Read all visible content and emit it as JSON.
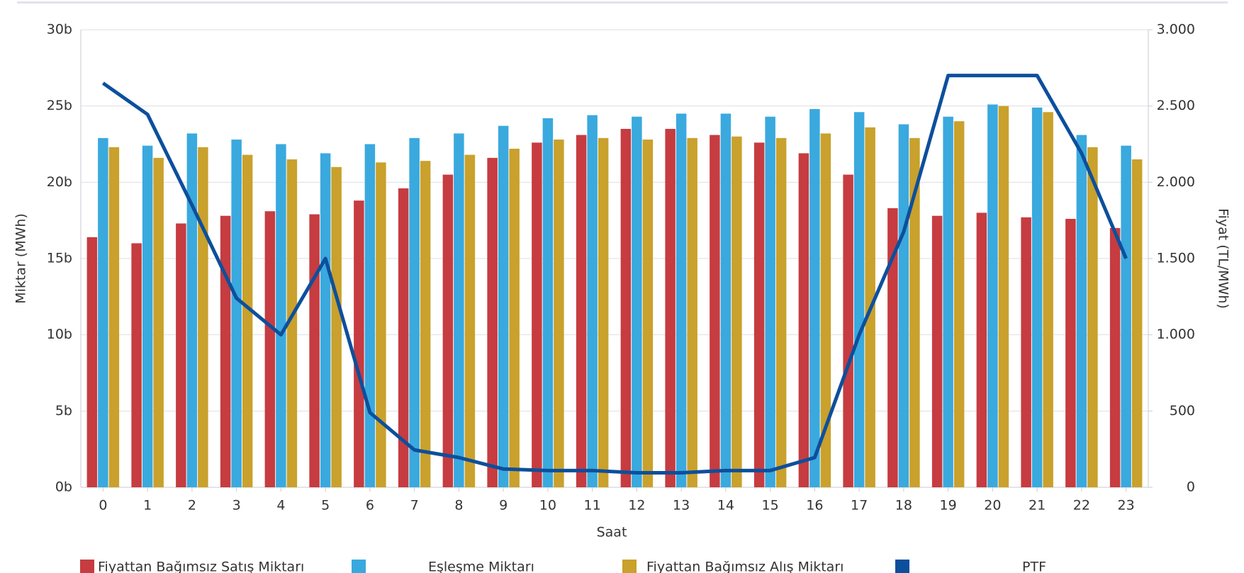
{
  "chart_data": {
    "type": "bar",
    "x_label": "Saat",
    "y_label": "Miktar (MWh)",
    "y2_label": "Fiyat (TL/MWh)",
    "categories": [
      "0",
      "1",
      "2",
      "3",
      "4",
      "5",
      "6",
      "7",
      "8",
      "9",
      "10",
      "11",
      "12",
      "13",
      "14",
      "15",
      "16",
      "17",
      "18",
      "19",
      "20",
      "21",
      "22",
      "23"
    ],
    "ylim": [
      0,
      30
    ],
    "yticks": [
      {
        "value": 0,
        "label": "0b"
      },
      {
        "value": 5,
        "label": "5b"
      },
      {
        "value": 10,
        "label": "10b"
      },
      {
        "value": 15,
        "label": "15b"
      },
      {
        "value": 20,
        "label": "20b"
      },
      {
        "value": 25,
        "label": "25b"
      },
      {
        "value": 30,
        "label": "30b"
      }
    ],
    "y2lim": [
      0,
      3000
    ],
    "y2ticks": [
      0,
      500,
      {
        "value": 1000,
        "label": "1.000"
      },
      {
        "value": 1500,
        "label": "1.500"
      },
      {
        "value": 2000,
        "label": "2.000"
      },
      {
        "value": 2500,
        "label": "2.500"
      },
      {
        "value": 3000,
        "label": "3.000"
      }
    ],
    "grid": true,
    "series": [
      {
        "name": "Fiyattan Bağımsız Satış Miktarı",
        "color": "#c63c40",
        "type": "bar",
        "values": [
          16.4,
          16.0,
          17.3,
          17.8,
          18.1,
          17.9,
          18.8,
          19.6,
          20.5,
          21.6,
          22.6,
          23.1,
          23.5,
          23.5,
          23.1,
          22.6,
          21.9,
          20.5,
          18.3,
          17.8,
          18.0,
          17.7,
          17.6,
          17.0
        ]
      },
      {
        "name": "Eşleşme Miktarı",
        "color": "#3aa9de",
        "type": "bar",
        "values": [
          22.9,
          22.4,
          23.2,
          22.8,
          22.5,
          21.9,
          22.5,
          22.9,
          23.2,
          23.7,
          24.2,
          24.4,
          24.3,
          24.5,
          24.5,
          24.3,
          24.8,
          24.6,
          23.8,
          24.3,
          25.1,
          24.9,
          23.1,
          22.4
        ]
      },
      {
        "name": "Fiyattan Bağımsız Alış Miktarı",
        "color": "#c9a12c",
        "type": "bar",
        "values": [
          22.3,
          21.6,
          22.3,
          21.8,
          21.5,
          21.0,
          21.3,
          21.4,
          21.8,
          22.2,
          22.8,
          22.9,
          22.8,
          22.9,
          23.0,
          22.9,
          23.2,
          23.6,
          22.9,
          24.0,
          25.0,
          24.6,
          22.3,
          21.5
        ]
      },
      {
        "name": "PTF",
        "color": "#0d4f9c",
        "type": "line",
        "axis": "y2",
        "values": [
          2650,
          2445,
          1850,
          1240,
          1000,
          1500,
          490,
          245,
          195,
          120,
          110,
          110,
          95,
          95,
          110,
          110,
          195,
          1000,
          1675,
          2700,
          2700,
          2700,
          2190,
          1500
        ]
      }
    ]
  }
}
